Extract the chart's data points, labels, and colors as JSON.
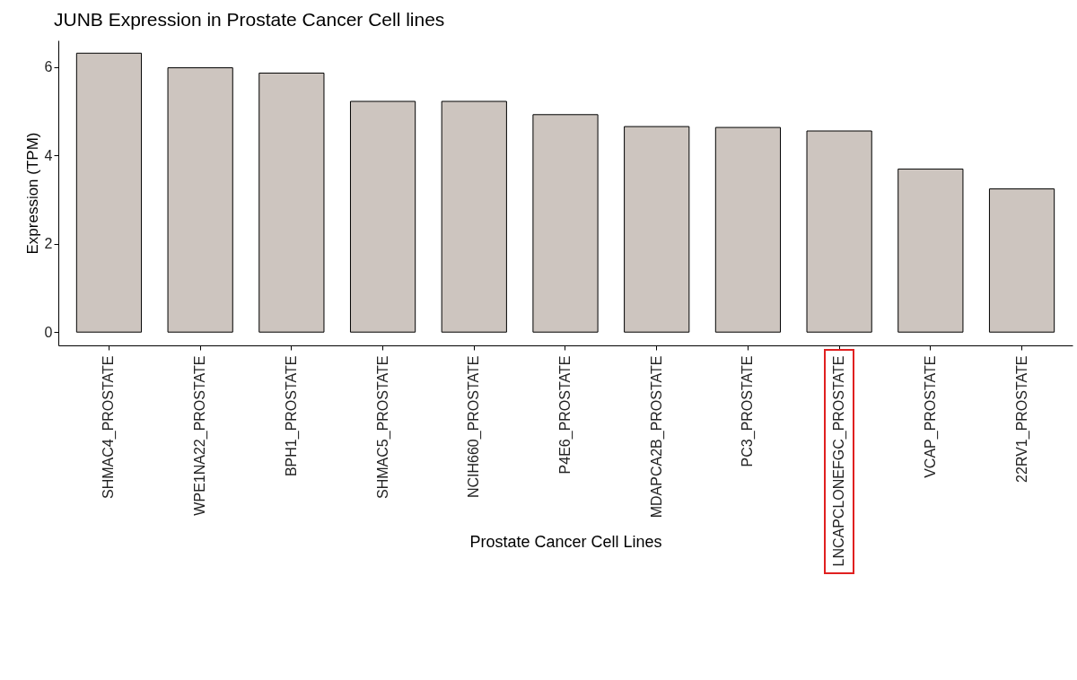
{
  "chart_data": {
    "type": "bar",
    "title": "JUNB Expression in Prostate Cancer Cell lines",
    "xlabel": "Prostate Cancer Cell Lines",
    "ylabel": "Expression (TPM)",
    "categories": [
      "SHMAC4_PROSTATE",
      "WPE1NA22_PROSTATE",
      "BPH1_PROSTATE",
      "SHMAC5_PROSTATE",
      "NCIH660_PROSTATE",
      "P4E6_PROSTATE",
      "MDAPCA2B_PROSTATE",
      "PC3_PROSTATE",
      "LNCAPCLONEFGC_PROSTATE",
      "VCAP_PROSTATE",
      "22RV1_PROSTATE"
    ],
    "values": [
      6.31,
      5.98,
      5.86,
      5.22,
      5.22,
      4.92,
      4.65,
      4.63,
      4.55,
      3.69,
      3.24
    ],
    "color": "#cdc5bf",
    "ylim": [
      -0.3,
      6.6
    ],
    "yticks": [
      0,
      2,
      4,
      6
    ],
    "grid": false
  }
}
